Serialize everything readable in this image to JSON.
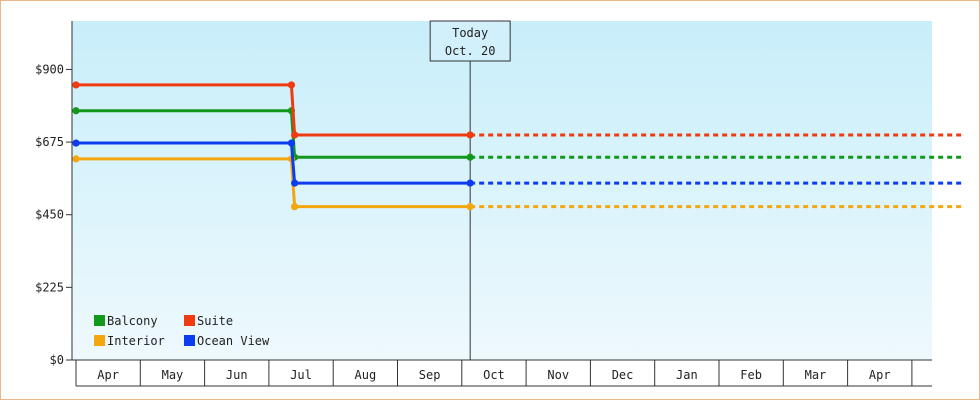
{
  "chart_data": {
    "type": "line",
    "title": "",
    "xlabel": "",
    "ylabel": "",
    "ylim": [
      0,
      1050
    ],
    "yticks": [
      0,
      225,
      450,
      675,
      900
    ],
    "ytick_labels": [
      "$0",
      "$225",
      "$450",
      "$675",
      "$900"
    ],
    "xticks": [
      "Apr",
      "May",
      "Jun",
      "Jul",
      "Aug",
      "Sep",
      "Oct",
      "Nov",
      "Dec",
      "Jan",
      "Feb",
      "Mar",
      "Apr"
    ],
    "x_start_month": 0,
    "x_end_month": 13,
    "grid": false,
    "background": "gradient light blue",
    "legend_position": "bottom-left",
    "today": {
      "label_line1": "Today",
      "label_line2": "Oct. 20",
      "x_month": 6.13
    },
    "series": [
      {
        "name": "Balcony",
        "color": "#12981a",
        "points": [
          [
            0,
            772
          ],
          [
            3.35,
            772
          ],
          [
            3.4,
            628
          ],
          [
            6.13,
            628
          ]
        ],
        "projected": 628
      },
      {
        "name": "Suite",
        "color": "#f03b11",
        "points": [
          [
            0,
            852
          ],
          [
            3.35,
            852
          ],
          [
            3.4,
            697
          ],
          [
            6.13,
            697
          ]
        ],
        "projected": 697
      },
      {
        "name": "Interior",
        "color": "#f4a60e",
        "points": [
          [
            0,
            623
          ],
          [
            3.35,
            623
          ],
          [
            3.4,
            475
          ],
          [
            6.13,
            475
          ]
        ],
        "projected": 475
      },
      {
        "name": "Ocean View",
        "color": "#0d3cf0",
        "points": [
          [
            0,
            672
          ],
          [
            3.35,
            672
          ],
          [
            3.4,
            548
          ],
          [
            6.13,
            548
          ]
        ],
        "projected": 548
      }
    ]
  }
}
